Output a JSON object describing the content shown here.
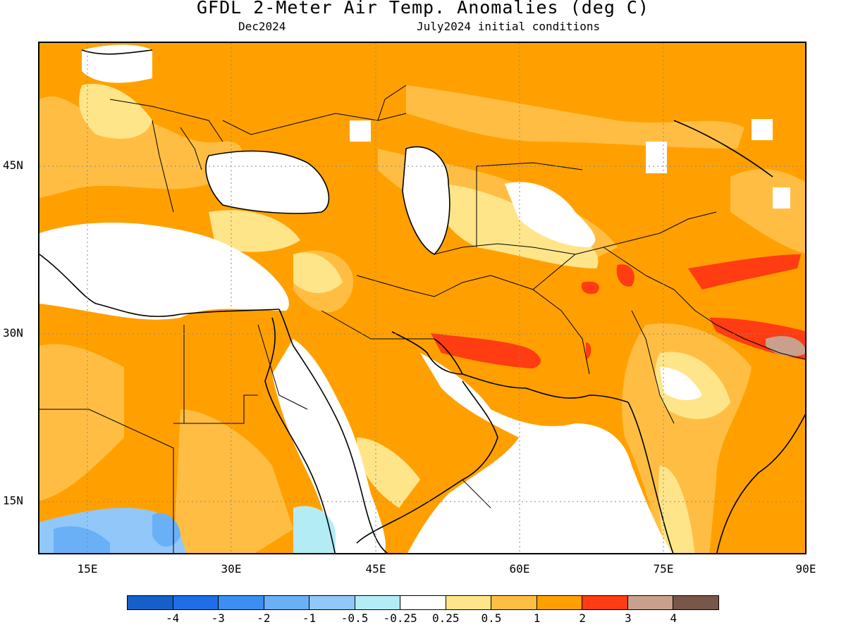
{
  "header": {
    "title": "GFDL 2-Meter Air Temp. Anomalies (deg C)",
    "subtitle_left": "Dec2024",
    "subtitle_right": "July2024 initial conditions"
  },
  "map": {
    "lat_labels": [
      "45N",
      "30N",
      "15N"
    ],
    "lon_labels": [
      "15E",
      "30E",
      "45E",
      "60E",
      "75E",
      "90E"
    ],
    "extent": {
      "lon_min": 10,
      "lon_max": 90,
      "lat_min": 10,
      "lat_max": 55
    }
  },
  "colorbar": {
    "colors": [
      "#1560c8",
      "#1f6ee6",
      "#3c8ef2",
      "#6ab0f7",
      "#91c8f9",
      "#b4ecf6",
      "#ffffff",
      "#ffe589",
      "#ffbe43",
      "#ffa000",
      "#ff3c12",
      "#c8a08c",
      "#785648"
    ],
    "labels": [
      "-4",
      "-3",
      "-2",
      "-1",
      "-0.5",
      "-0.25",
      "0.25",
      "0.5",
      "1",
      "2",
      "3",
      "4"
    ]
  },
  "colors": {
    "anomaly_0_25_0_5": "#ffe589",
    "anomaly_0_5_1": "#ffbe43",
    "anomaly_1_2": "#ffa000",
    "anomaly_2_3": "#ff3c12",
    "anomaly_3_4": "#c8a08c",
    "anomaly_neg_small": "#b4ecf6",
    "anomaly_neg_mid": "#91c8f9",
    "anomaly_neg_large": "#6ab0f7"
  }
}
